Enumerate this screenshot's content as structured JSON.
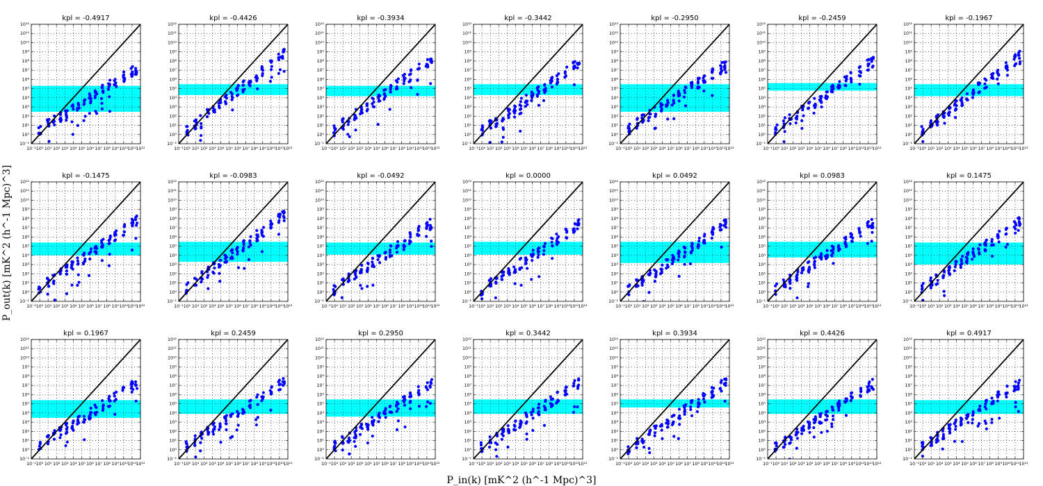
{
  "figure": {
    "xlabel": "P_in(k) [mK^2 (h^-1 Mpc)^3]",
    "ylabel": "P_out(k) [mK^2 (h^-1 Mpc)^3]"
  },
  "chart_data": {
    "type": "scatter",
    "xscale": "log",
    "yscale": "log",
    "xlim": [
      0.1,
      1000000000000.0
    ],
    "ylim": [
      0.1,
      1000000000000.0
    ],
    "grid": true,
    "x_tick_labels": [
      "10⁻¹",
      "10⁰",
      "10¹",
      "10²",
      "10³",
      "10⁴",
      "10⁵",
      "10⁶",
      "10⁷",
      "10⁸",
      "10⁹",
      "10¹⁰",
      "10¹¹",
      "10¹²"
    ],
    "y_tick_labels": [
      "10⁻¹",
      "10⁰",
      "10¹",
      "10²",
      "10³",
      "10⁴",
      "10⁵",
      "10⁶",
      "10⁷",
      "10⁸",
      "10⁹",
      "10¹⁰",
      "10¹¹",
      "10¹²"
    ],
    "colors": {
      "points": "#0000ff",
      "line": "#000000",
      "band": "#00ffff"
    },
    "panels": [
      {
        "title": "kpl = -0.4917",
        "band": [
          300,
          200000.0
        ],
        "slope": 0.58,
        "offset": 0.5
      },
      {
        "title": "kpl = -0.4426",
        "band": [
          20000.0,
          300000.0
        ],
        "slope": 0.72,
        "offset": 0.3
      },
      {
        "title": "kpl = -0.3934",
        "band": [
          15000.0,
          200000.0
        ],
        "slope": 0.66,
        "offset": 0.4
      },
      {
        "title": "kpl = -0.3442",
        "band": [
          20000.0,
          300000.0
        ],
        "slope": 0.64,
        "offset": 0.3
      },
      {
        "title": "kpl = -0.2950",
        "band": [
          300,
          300000.0
        ],
        "slope": 0.6,
        "offset": 0.6
      },
      {
        "title": "kpl = -0.2459",
        "band": [
          60000.0,
          400000.0
        ],
        "slope": 0.64,
        "offset": 0.5
      },
      {
        "title": "kpl = -0.1967",
        "band": [
          15000.0,
          300000.0
        ],
        "slope": 0.7,
        "offset": 0.3
      },
      {
        "title": "kpl = -0.1475",
        "band": [
          10000.0,
          250000.0
        ],
        "slope": 0.64,
        "offset": 0.3
      },
      {
        "title": "kpl = -0.0983",
        "band": [
          2000.0,
          300000.0
        ],
        "slope": 0.68,
        "offset": 0.4
      },
      {
        "title": "kpl = -0.0492",
        "band": [
          12000.0,
          250000.0
        ],
        "slope": 0.62,
        "offset": 0.3
      },
      {
        "title": "kpl = 0.0000",
        "band": [
          12000.0,
          300000.0
        ],
        "slope": 0.62,
        "offset": 0.2
      },
      {
        "title": "kpl = 0.0492",
        "band": [
          1500.0,
          300000.0
        ],
        "slope": 0.62,
        "offset": 0.2
      },
      {
        "title": "kpl = 0.0983",
        "band": [
          6000.0,
          300000.0
        ],
        "slope": 0.62,
        "offset": 0.3
      },
      {
        "title": "kpl = 0.1475",
        "band": [
          1000.0,
          250000.0
        ],
        "slope": 0.62,
        "offset": 0.4
      },
      {
        "title": "kpl = 0.1967",
        "band": [
          3000.0,
          250000.0
        ],
        "slope": 0.58,
        "offset": 0.5
      },
      {
        "title": "kpl = 0.2459",
        "band": [
          8000.0,
          300000.0
        ],
        "slope": 0.6,
        "offset": 0.4
      },
      {
        "title": "kpl = 0.2950",
        "band": [
          4000.0,
          300000.0
        ],
        "slope": 0.6,
        "offset": 0.3
      },
      {
        "title": "kpl = 0.3442",
        "band": [
          8000.0,
          300000.0
        ],
        "slope": 0.6,
        "offset": 0.3
      },
      {
        "title": "kpl = 0.3934",
        "band": [
          40000.0,
          300000.0
        ],
        "slope": 0.62,
        "offset": 0.1
      },
      {
        "title": "kpl = 0.4426",
        "band": [
          8000.0,
          300000.0
        ],
        "slope": 0.6,
        "offset": 0.2
      },
      {
        "title": "kpl = 0.4917",
        "band": [
          8000.0,
          250000.0
        ],
        "slope": 0.6,
        "offset": 0.3
      }
    ],
    "x_clusters": [
      1,
      10,
      50,
      300,
      1500,
      8000,
      40000.0,
      200000.0,
      1000000.0,
      5000000.0,
      30000000.0,
      200000000.0,
      1000000000.0,
      10000000000.0,
      100000000000.0,
      300000000000.0
    ]
  }
}
